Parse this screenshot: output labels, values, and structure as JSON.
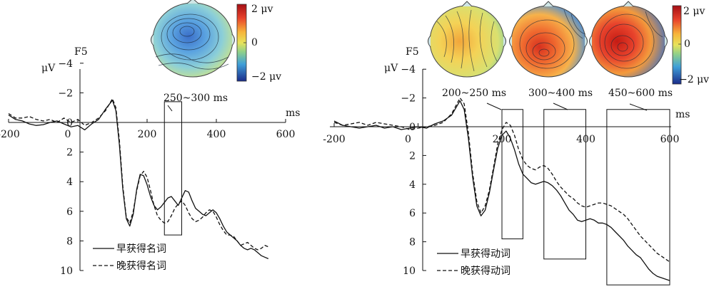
{
  "chart_data": [
    {
      "type": "line",
      "channel_label": "F5",
      "y_unit_label": "μV",
      "x_unit_label": "ms",
      "xlim": [
        -200,
        600
      ],
      "ylim": [
        -4,
        10
      ],
      "y_inverted": true,
      "x_ticks": [
        -200,
        0,
        200,
        400,
        600
      ],
      "y_ticks": [
        -4,
        -2,
        0,
        2,
        4,
        6,
        8,
        10
      ],
      "x_tick_labels": [
        "-200",
        "0",
        "200",
        "400",
        "600"
      ],
      "y_tick_labels": [
        "−4",
        "−2",
        "0",
        "2",
        "4",
        "6",
        "8",
        "10"
      ],
      "windows": [
        {
          "label": "250~300 ms",
          "start": 250,
          "end": 300,
          "y_top": -1.4,
          "y_bottom": 7.6
        }
      ],
      "colorbar": {
        "max_label": "2 μv",
        "mid_label": "0",
        "min_label": "−2 μv"
      },
      "topo_maps": [
        {
          "window": "250~300 ms",
          "value_uv": -1.2
        }
      ],
      "series": [
        {
          "name": "早获得名词",
          "style": "solid",
          "points": [
            [
              -200,
              -0.5
            ],
            [
              -180,
              -0.2
            ],
            [
              -160,
              -0.1
            ],
            [
              -140,
              0.1
            ],
            [
              -120,
              0.2
            ],
            [
              -100,
              0.15
            ],
            [
              -80,
              0.0
            ],
            [
              -60,
              -0.1
            ],
            [
              -40,
              0.1
            ],
            [
              -20,
              0.3
            ],
            [
              0,
              0.2
            ],
            [
              20,
              0.5
            ],
            [
              40,
              0.1
            ],
            [
              60,
              -0.2
            ],
            [
              80,
              -0.9
            ],
            [
              100,
              -1.5
            ],
            [
              110,
              -0.8
            ],
            [
              120,
              1.5
            ],
            [
              130,
              4.5
            ],
            [
              140,
              6.5
            ],
            [
              150,
              7.0
            ],
            [
              160,
              6.2
            ],
            [
              170,
              4.5
            ],
            [
              180,
              3.5
            ],
            [
              190,
              3.6
            ],
            [
              200,
              4.2
            ],
            [
              210,
              5.0
            ],
            [
              220,
              5.6
            ],
            [
              230,
              5.9
            ],
            [
              240,
              5.7
            ],
            [
              250,
              5.4
            ],
            [
              260,
              5.1
            ],
            [
              270,
              5.0
            ],
            [
              280,
              5.3
            ],
            [
              290,
              5.6
            ],
            [
              300,
              5.1
            ],
            [
              310,
              4.6
            ],
            [
              320,
              4.7
            ],
            [
              330,
              5.3
            ],
            [
              340,
              5.8
            ],
            [
              350,
              6.0
            ],
            [
              360,
              6.2
            ],
            [
              370,
              6.3
            ],
            [
              380,
              6.1
            ],
            [
              390,
              5.9
            ],
            [
              400,
              6.1
            ],
            [
              410,
              6.5
            ],
            [
              420,
              7.0
            ],
            [
              430,
              7.4
            ],
            [
              440,
              7.6
            ],
            [
              450,
              7.8
            ],
            [
              460,
              8.0
            ],
            [
              470,
              8.3
            ],
            [
              480,
              8.5
            ],
            [
              490,
              8.6
            ],
            [
              500,
              8.5
            ],
            [
              510,
              8.6
            ],
            [
              520,
              8.8
            ],
            [
              530,
              9.0
            ],
            [
              540,
              9.1
            ],
            [
              550,
              9.2
            ]
          ]
        },
        {
          "name": "晚获得名词",
          "style": "dashed",
          "points": [
            [
              -200,
              -0.6
            ],
            [
              -180,
              -0.3
            ],
            [
              -160,
              -0.3
            ],
            [
              -140,
              -0.4
            ],
            [
              -120,
              -0.2
            ],
            [
              -100,
              -0.1
            ],
            [
              -80,
              -0.2
            ],
            [
              -60,
              0.0
            ],
            [
              -40,
              -0.3
            ],
            [
              -20,
              0.0
            ],
            [
              0,
              -0.2
            ],
            [
              20,
              0.2
            ],
            [
              40,
              0.0
            ],
            [
              60,
              -0.3
            ],
            [
              80,
              -0.8
            ],
            [
              100,
              -1.6
            ],
            [
              110,
              -1.0
            ],
            [
              120,
              1.2
            ],
            [
              130,
              4.3
            ],
            [
              140,
              6.4
            ],
            [
              150,
              6.8
            ],
            [
              160,
              6.0
            ],
            [
              170,
              4.6
            ],
            [
              180,
              3.6
            ],
            [
              190,
              3.3
            ],
            [
              200,
              3.7
            ],
            [
              210,
              4.6
            ],
            [
              220,
              5.6
            ],
            [
              230,
              6.3
            ],
            [
              240,
              6.6
            ],
            [
              250,
              6.8
            ],
            [
              260,
              6.7
            ],
            [
              270,
              6.3
            ],
            [
              280,
              5.8
            ],
            [
              290,
              5.5
            ],
            [
              300,
              5.3
            ],
            [
              310,
              5.6
            ],
            [
              320,
              6.1
            ],
            [
              330,
              6.5
            ],
            [
              340,
              6.7
            ],
            [
              350,
              6.6
            ],
            [
              360,
              6.4
            ],
            [
              370,
              6.1
            ],
            [
              380,
              5.9
            ],
            [
              390,
              6.0
            ],
            [
              400,
              6.4
            ],
            [
              410,
              6.9
            ],
            [
              420,
              7.3
            ],
            [
              430,
              7.6
            ],
            [
              440,
              7.6
            ],
            [
              450,
              7.7
            ],
            [
              460,
              8.0
            ],
            [
              470,
              8.3
            ],
            [
              480,
              8.2
            ],
            [
              490,
              8.1
            ],
            [
              500,
              8.3
            ],
            [
              510,
              8.5
            ],
            [
              520,
              8.6
            ],
            [
              530,
              8.5
            ],
            [
              540,
              8.3
            ],
            [
              550,
              8.4
            ]
          ]
        }
      ]
    },
    {
      "type": "line",
      "channel_label": "F5",
      "y_unit_label": "μV",
      "x_unit_label": "ms",
      "xlim": [
        -200,
        600
      ],
      "ylim": [
        -4,
        10
      ],
      "y_inverted": true,
      "x_ticks": [
        -200,
        0,
        200,
        400,
        600
      ],
      "y_ticks": [
        -4,
        -2,
        0,
        2,
        4,
        6,
        8,
        10
      ],
      "x_tick_labels": [
        "-200",
        "0",
        "200",
        "400",
        "600"
      ],
      "y_tick_labels": [
        "−4",
        "−2",
        "0",
        "2",
        "4",
        "6",
        "8",
        "10"
      ],
      "windows": [
        {
          "label": "200~250 ms",
          "start": 200,
          "end": 250,
          "y_top": -1.2,
          "y_bottom": 7.8
        },
        {
          "label": "300~400 ms",
          "start": 300,
          "end": 400,
          "y_top": -1.2,
          "y_bottom": 9.2
        },
        {
          "label": "450~600 ms",
          "start": 450,
          "end": 600,
          "y_top": -1.2,
          "y_bottom": 11.0
        }
      ],
      "colorbar": {
        "max_label": "2 μv",
        "mid_label": "0",
        "min_label": "−2 μv"
      },
      "topo_maps": [
        {
          "window": "200~250 ms",
          "value_uv": 0.6
        },
        {
          "window": "300~400 ms",
          "value_uv": 1.4
        },
        {
          "window": "450~600 ms",
          "value_uv": 1.8
        }
      ],
      "series": [
        {
          "name": "早获得动词",
          "style": "solid",
          "points": [
            [
              -200,
              -0.4
            ],
            [
              -180,
              -0.1
            ],
            [
              -160,
              0.0
            ],
            [
              -140,
              0.1
            ],
            [
              -120,
              0.0
            ],
            [
              -100,
              -0.1
            ],
            [
              -80,
              0.1
            ],
            [
              -60,
              0.0
            ],
            [
              -40,
              0.2
            ],
            [
              -20,
              0.1
            ],
            [
              0,
              0.0
            ],
            [
              20,
              0.1
            ],
            [
              40,
              -0.2
            ],
            [
              60,
              -0.4
            ],
            [
              80,
              -0.8
            ],
            [
              100,
              -1.8
            ],
            [
              110,
              -1.2
            ],
            [
              120,
              0.8
            ],
            [
              130,
              3.5
            ],
            [
              140,
              5.5
            ],
            [
              150,
              6.2
            ],
            [
              160,
              5.8
            ],
            [
              170,
              4.6
            ],
            [
              180,
              3.0
            ],
            [
              190,
              1.5
            ],
            [
              200,
              0.6
            ],
            [
              210,
              0.3
            ],
            [
              220,
              0.8
            ],
            [
              230,
              1.6
            ],
            [
              240,
              2.6
            ],
            [
              250,
              3.3
            ],
            [
              260,
              3.6
            ],
            [
              270,
              3.9
            ],
            [
              280,
              4.0
            ],
            [
              290,
              3.9
            ],
            [
              300,
              3.8
            ],
            [
              310,
              3.9
            ],
            [
              320,
              4.1
            ],
            [
              330,
              4.4
            ],
            [
              340,
              4.8
            ],
            [
              350,
              5.3
            ],
            [
              360,
              5.8
            ],
            [
              370,
              6.1
            ],
            [
              380,
              6.5
            ],
            [
              390,
              6.6
            ],
            [
              400,
              6.5
            ],
            [
              410,
              6.4
            ],
            [
              420,
              6.5
            ],
            [
              430,
              6.7
            ],
            [
              440,
              6.7
            ],
            [
              450,
              6.8
            ],
            [
              460,
              7.0
            ],
            [
              470,
              7.3
            ],
            [
              480,
              7.6
            ],
            [
              490,
              7.9
            ],
            [
              500,
              8.3
            ],
            [
              510,
              8.6
            ],
            [
              520,
              8.9
            ],
            [
              530,
              9.1
            ],
            [
              540,
              9.5
            ],
            [
              550,
              9.9
            ],
            [
              560,
              10.2
            ],
            [
              570,
              10.4
            ],
            [
              580,
              10.5
            ],
            [
              590,
              10.6
            ],
            [
              600,
              10.7
            ]
          ]
        },
        {
          "name": "晚获得动词",
          "style": "dashed",
          "points": [
            [
              -200,
              -0.3
            ],
            [
              -180,
              -0.1
            ],
            [
              -160,
              -0.2
            ],
            [
              -140,
              -0.3
            ],
            [
              -120,
              -0.1
            ],
            [
              -100,
              -0.3
            ],
            [
              -80,
              -0.2
            ],
            [
              -60,
              -0.1
            ],
            [
              -40,
              0.0
            ],
            [
              -20,
              0.2
            ],
            [
              0,
              0.1
            ],
            [
              20,
              0.0
            ],
            [
              40,
              -0.1
            ],
            [
              60,
              -0.3
            ],
            [
              80,
              -0.9
            ],
            [
              100,
              -2.0
            ],
            [
              110,
              -1.6
            ],
            [
              120,
              0.4
            ],
            [
              130,
              3.2
            ],
            [
              140,
              5.2
            ],
            [
              150,
              6.0
            ],
            [
              160,
              5.5
            ],
            [
              170,
              4.4
            ],
            [
              180,
              2.8
            ],
            [
              190,
              1.2
            ],
            [
              200,
              0.2
            ],
            [
              210,
              -0.3
            ],
            [
              220,
              -0.1
            ],
            [
              230,
              0.6
            ],
            [
              240,
              1.6
            ],
            [
              250,
              2.3
            ],
            [
              260,
              2.7
            ],
            [
              270,
              2.9
            ],
            [
              280,
              3.0
            ],
            [
              290,
              2.8
            ],
            [
              300,
              2.7
            ],
            [
              310,
              2.9
            ],
            [
              320,
              3.3
            ],
            [
              330,
              3.8
            ],
            [
              340,
              4.2
            ],
            [
              350,
              4.5
            ],
            [
              360,
              4.8
            ],
            [
              370,
              5.0
            ],
            [
              380,
              5.3
            ],
            [
              390,
              5.5
            ],
            [
              400,
              5.6
            ],
            [
              410,
              5.5
            ],
            [
              420,
              5.4
            ],
            [
              430,
              5.3
            ],
            [
              440,
              5.3
            ],
            [
              450,
              5.4
            ],
            [
              460,
              5.5
            ],
            [
              470,
              5.7
            ],
            [
              480,
              5.9
            ],
            [
              490,
              6.1
            ],
            [
              500,
              6.4
            ],
            [
              510,
              6.8
            ],
            [
              520,
              7.2
            ],
            [
              530,
              7.6
            ],
            [
              540,
              7.9
            ],
            [
              550,
              8.2
            ],
            [
              560,
              8.5
            ],
            [
              570,
              8.8
            ],
            [
              580,
              9.0
            ],
            [
              590,
              9.2
            ],
            [
              600,
              9.4
            ]
          ]
        }
      ]
    }
  ]
}
